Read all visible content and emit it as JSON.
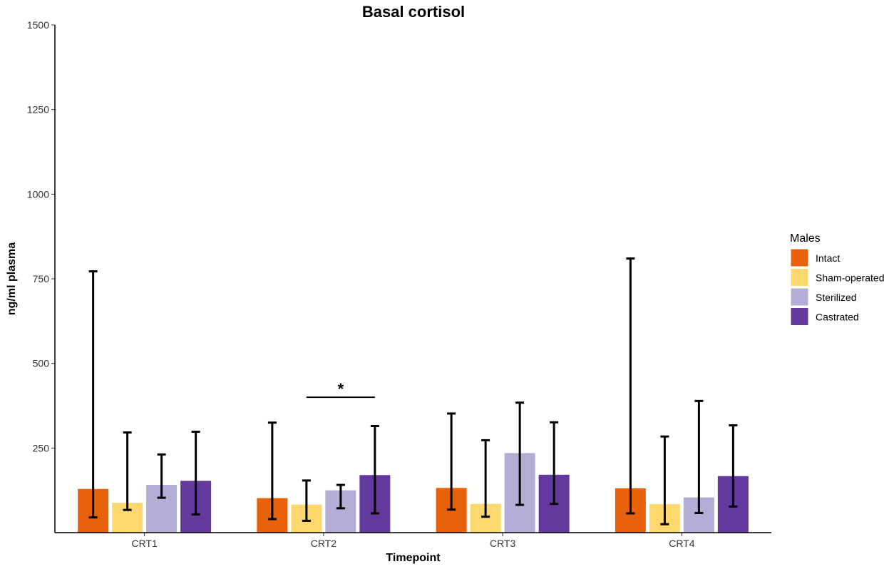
{
  "chart_data": {
    "type": "bar",
    "title": "Basal cortisol",
    "xlabel": "Timepoint",
    "ylabel": "ng/ml plasma",
    "ylim": [
      0,
      1500
    ],
    "yticks": [
      250,
      500,
      750,
      1000,
      1250,
      1500
    ],
    "categories": [
      "CRT1",
      "CRT2",
      "CRT3",
      "CRT4"
    ],
    "legend": {
      "title": "Males",
      "position": "right"
    },
    "series": [
      {
        "name": "Intact",
        "color": "#e8620c",
        "values": [
          128,
          101,
          131,
          130
        ],
        "error_low": [
          45,
          40,
          68,
          57
        ],
        "error_high": [
          772,
          325,
          352,
          810
        ]
      },
      {
        "name": "Sham-operated",
        "color": "#fdd86e",
        "values": [
          87,
          82,
          84,
          83
        ],
        "error_low": [
          67,
          35,
          47,
          25
        ],
        "error_high": [
          296,
          154,
          273,
          284
        ]
      },
      {
        "name": "Sterilized",
        "color": "#b3aed6",
        "values": [
          140,
          124,
          234,
          103
        ],
        "error_low": [
          103,
          72,
          82,
          58
        ],
        "error_high": [
          231,
          141,
          384,
          389
        ]
      },
      {
        "name": "Castrated",
        "color": "#63399d",
        "values": [
          152,
          169,
          170,
          166
        ],
        "error_low": [
          54,
          57,
          85,
          77
        ],
        "error_high": [
          298,
          315,
          326,
          317
        ]
      }
    ],
    "annotations": [
      {
        "label": "*",
        "category": "CRT2",
        "from_series": "Sham-operated",
        "to_series": "Castrated",
        "y": 400
      }
    ]
  }
}
